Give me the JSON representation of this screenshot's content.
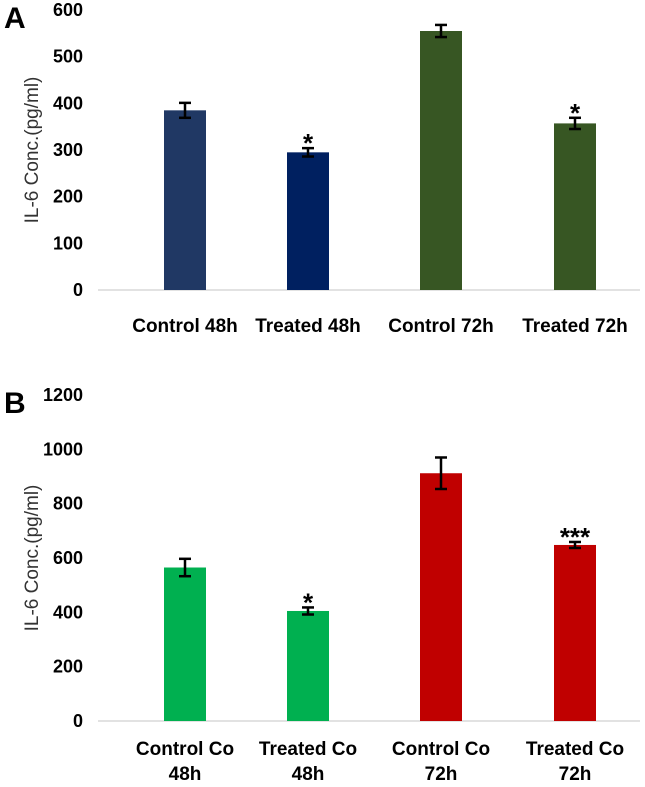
{
  "chart_data": [
    {
      "type": "bar",
      "panel": "A",
      "title": "",
      "xlabel": "",
      "ylabel": "IL-6 Conc.(pg/ml)",
      "ylim": [
        0,
        600
      ],
      "yticks": [
        "600",
        "500",
        "400",
        "300",
        "200",
        "100",
        "0"
      ],
      "grid": false,
      "categories": [
        [
          "Control 48h"
        ],
        [
          "Treated 48h"
        ],
        [
          "Control 72h"
        ],
        [
          "Treated 72h"
        ]
      ],
      "values": [
        385,
        295,
        555,
        357
      ],
      "errors": [
        16,
        9,
        13,
        12
      ],
      "colors": [
        "#203864",
        "#002060",
        "#375623",
        "#375623"
      ],
      "significance": [
        "",
        "*",
        "",
        "*"
      ]
    },
    {
      "type": "bar",
      "panel": "B",
      "title": "",
      "xlabel": "",
      "ylabel": "IL-6 Conc.(pg/ml)",
      "ylim": [
        0,
        1200
      ],
      "yticks": [
        "1200",
        "1000",
        "800",
        "600",
        "400",
        "200",
        "0"
      ],
      "grid": false,
      "categories": [
        [
          "Control Co",
          "48h"
        ],
        [
          "Treated Co",
          "48h"
        ],
        [
          "Control Co",
          "72h"
        ],
        [
          "Treated Co",
          "72h"
        ]
      ],
      "values": [
        565,
        405,
        912,
        648
      ],
      "errors": [
        32,
        13,
        58,
        11
      ],
      "colors": [
        "#00b050",
        "#00b050",
        "#c00000",
        "#c00000"
      ],
      "significance": [
        "",
        "*",
        "",
        "***"
      ]
    }
  ]
}
